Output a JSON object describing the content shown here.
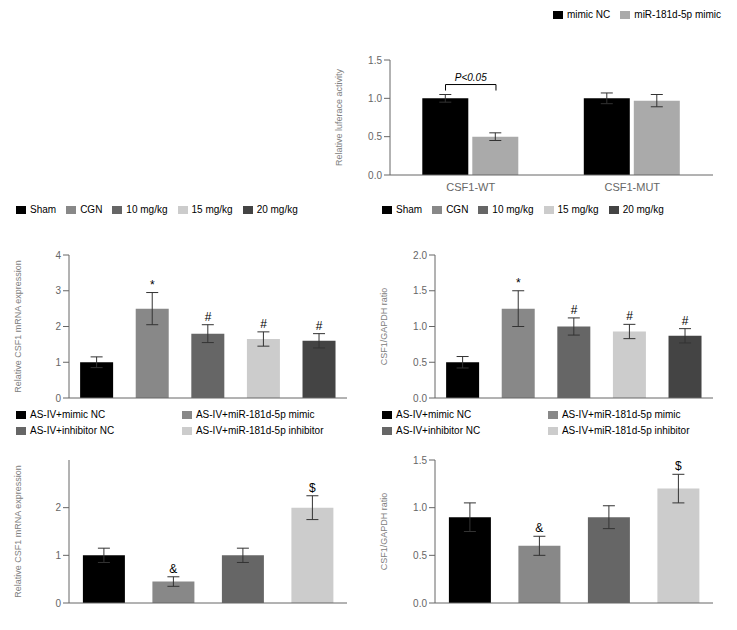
{
  "chart_data": [
    {
      "type": "bar",
      "categories": [
        "CSF1-WT",
        "CSF1-MUT"
      ],
      "series": [
        {
          "name": "mimic NC",
          "color": "#000000",
          "values": [
            1.0,
            1.0
          ],
          "errors": [
            0.05,
            0.07
          ]
        },
        {
          "name": "miR-181d-5p mimic",
          "color": "#aaaaaa",
          "values": [
            0.5,
            0.97
          ],
          "errors": [
            0.05,
            0.08
          ]
        }
      ],
      "y_label": "Relative luferace activity",
      "ylim": [
        0,
        1.5
      ],
      "yticks": [
        {
          "value": 0,
          "label": "0.0"
        },
        {
          "value": 0.5,
          "label": "0.5"
        },
        {
          "value": 1.0,
          "label": "1.0"
        },
        {
          "value": 1.5,
          "label": "1.5"
        }
      ],
      "annotations": [
        {
          "text": "P<0.05",
          "x": "CSF1-WT",
          "y": 1.18
        }
      ],
      "legend": "upper right"
    },
    {
      "type": "bar",
      "categories": [
        "Sham",
        "CGN",
        "10 mg/kg",
        "15 mg/kg",
        "20 mg/kg"
      ],
      "values": [
        1.0,
        2.5,
        1.8,
        1.65,
        1.6
      ],
      "errors": [
        0.15,
        0.45,
        0.25,
        0.2,
        0.2
      ],
      "colors": [
        "#000000",
        "#888888",
        "#666666",
        "#cccccc",
        "#444444"
      ],
      "y_label": "Relative CSF1 mRNA expression",
      "ylim": [
        0,
        4
      ],
      "yticks": [
        0,
        1,
        2,
        3,
        4
      ],
      "annotations": [
        null,
        "*",
        "#",
        "#",
        "#"
      ],
      "legend": "upper left",
      "tick_labels": "y"
    },
    {
      "type": "bar",
      "categories": [
        "Sham",
        "CGN",
        "10 mg/kg",
        "15 mg/kg",
        "20 mg/kg"
      ],
      "values": [
        0.5,
        1.25,
        1.0,
        0.93,
        0.87
      ],
      "errors": [
        0.08,
        0.25,
        0.12,
        0.1,
        0.1
      ],
      "colors": [
        "#000000",
        "#888888",
        "#666666",
        "#cccccc",
        "#444444"
      ],
      "y_label": "CSF1/GAPDH ratio",
      "ylim": [
        0,
        2.0
      ],
      "yticks": [
        {
          "value": 0,
          "label": "0.0"
        },
        {
          "value": 0.5,
          "label": "0.5"
        },
        {
          "value": 1.0,
          "label": "1.0"
        },
        {
          "value": 1.5,
          "label": "1.5"
        },
        {
          "value": 2.0,
          "label": "2.0"
        }
      ],
      "annotations": [
        null,
        "*",
        "#",
        "#",
        "#"
      ],
      "legend": "upper left",
      "tick_labels": "y"
    },
    {
      "type": "bar",
      "categories": [
        "AS-IV+mimic NC",
        "AS-IV+miR-181d-5p mimic",
        "AS-IV+inhibitor NC",
        "AS-IV+miR-181d-5p inhibitor"
      ],
      "values": [
        1.0,
        0.45,
        1.0,
        2.0
      ],
      "errors": [
        0.15,
        0.1,
        0.15,
        0.25
      ],
      "colors": [
        "#000000",
        "#888888",
        "#666666",
        "#cccccc"
      ],
      "y_label": "Relative CSF1 mRNA expression",
      "ylim": [
        0,
        3
      ],
      "yticks": [
        0,
        1,
        2
      ],
      "annotations": [
        null,
        "&",
        null,
        "$"
      ],
      "legend": "upper left",
      "tick_labels": "y"
    },
    {
      "type": "bar",
      "categories": [
        "AS-IV+mimic NC",
        "AS-IV+miR-181d-5p mimic",
        "AS-IV+inhibitor NC",
        "AS-IV+miR-181d-5p inhibitor"
      ],
      "values": [
        0.9,
        0.6,
        0.9,
        1.2
      ],
      "errors": [
        0.15,
        0.1,
        0.12,
        0.15
      ],
      "colors": [
        "#000000",
        "#888888",
        "#666666",
        "#cccccc"
      ],
      "y_label": "CSF1/GAPDH ratio",
      "ylim": [
        0,
        1.5
      ],
      "yticks": [
        {
          "value": 0,
          "label": "0.0"
        },
        {
          "value": 0.5,
          "label": "0.5"
        },
        {
          "value": 1.0,
          "label": "1.0"
        },
        {
          "value": 1.5,
          "label": "1.5"
        }
      ],
      "annotations": [
        null,
        "&",
        null,
        "$"
      ],
      "legend": "upper left",
      "tick_labels": "y"
    }
  ]
}
